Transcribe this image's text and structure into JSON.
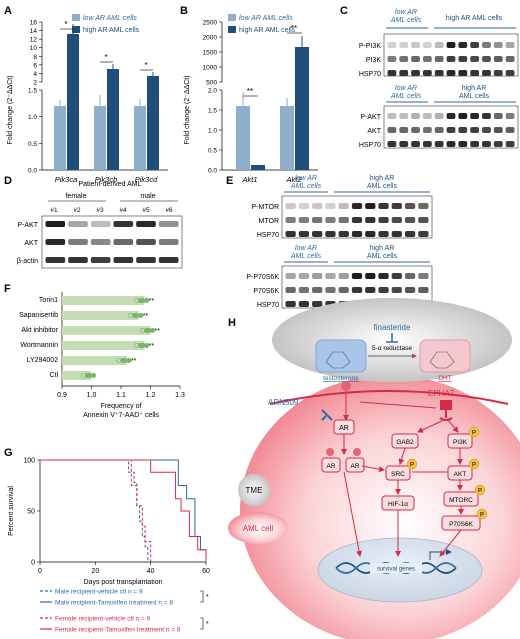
{
  "panels": {
    "A": "A",
    "B": "B",
    "C": "C",
    "D": "D",
    "E": "E",
    "F": "F",
    "G": "G",
    "H": "H"
  },
  "colors": {
    "low": "#8eaecb",
    "high": "#1f4e79",
    "blue": "#2d6aa3",
    "red": "#d62b45",
    "fbar": "#c6dcb5",
    "fdot": "#7cb36a"
  },
  "panelA": {
    "legend": {
      "low": "low AR AML cells",
      "high": "high AR AML cells"
    },
    "ylabel": "Fold change (2⁻ΔΔCt)",
    "categories": [
      "Pik3ca",
      "Pik3cb",
      "Pik3cd"
    ],
    "sig": [
      "*",
      "*",
      "*"
    ],
    "upper_ticks": [
      "16",
      "14",
      "12",
      "10",
      "8",
      "6",
      "4",
      "2"
    ],
    "lower_ticks": [
      "1.5",
      "1.0",
      "0.5",
      "0.0"
    ]
  },
  "panelB": {
    "legend": {
      "low": "low AR AML cells",
      "high": "high AR AML cells"
    },
    "ylabel": "Fold change (2⁻ΔΔCt)",
    "categories": [
      "Akt1",
      "Akt2"
    ],
    "sig": [
      "**",
      "**"
    ],
    "upper_ticks": [
      "2500",
      "2000",
      "1500",
      "1000",
      "500"
    ],
    "lower_ticks": [
      "2.0",
      "1.5",
      "1.0",
      "0.5",
      "0.0"
    ]
  },
  "panelC": {
    "group_low": "low AR\nAML cells",
    "group_high": "high AR AML cells",
    "blot1": [
      "P-PI3K",
      "PI3K",
      "HSP70"
    ],
    "group_low2": "low AR\nAML cells",
    "group_high2": "high AR\nAML cells",
    "blot2": [
      "P-AKT",
      "AKT",
      "HSP70"
    ]
  },
  "panelD": {
    "title": "Patient-derived AML",
    "female": "female",
    "male": "male",
    "lanes": [
      "#1",
      "#2",
      "#3",
      "#4",
      "#5",
      "#6"
    ],
    "rows": [
      "P-AKT",
      "AKT",
      "β-actin"
    ]
  },
  "panelE": {
    "group_low": "low AR\nAML cells",
    "group_high": "high AR\nAML cells",
    "blot1": [
      "P-MTOR",
      "MTOR",
      "HSP70"
    ],
    "group_low2": "low AR\nAML cells",
    "group_high2": "high AR\nAML cells",
    "blot2": [
      "P-P70S6K",
      "P70S6K",
      "HSP70"
    ]
  },
  "chart_data": [
    {
      "panel": "A",
      "type": "bar",
      "categories": [
        "Pik3ca",
        "Pik3cb",
        "Pik3cd"
      ],
      "series": [
        {
          "name": "low AR AML cells",
          "values": [
            1.0,
            1.0,
            1.0
          ],
          "err": [
            0.1,
            0.2,
            0.12
          ]
        },
        {
          "name": "high AR AML cells",
          "values": [
            12.5,
            4.2,
            2.8
          ],
          "err": [
            2.5,
            1.0,
            0.3
          ]
        }
      ],
      "ylabel": "Fold change (2⁻ΔΔCt)"
    },
    {
      "panel": "B",
      "type": "bar",
      "categories": [
        "Akt1",
        "Akt2"
      ],
      "series": [
        {
          "name": "low AR AML cells",
          "values": [
            1.0,
            1.0
          ],
          "err": [
            0.3,
            0.2
          ]
        },
        {
          "name": "high AR AML cells",
          "values": [
            0.1,
            1900
          ],
          "err": [
            0.03,
            300
          ]
        }
      ],
      "ylabel": "Fold change (2⁻ΔΔCt)"
    },
    {
      "panel": "F",
      "type": "bar",
      "orientation": "horizontal",
      "categories": [
        "Torin1",
        "Sapanisertib",
        "Akt inhibitor",
        "Wortmannin",
        "LY294002",
        "Ctl"
      ],
      "values": [
        1.18,
        1.16,
        1.2,
        1.18,
        1.12,
        1.0
      ],
      "sig": [
        "**",
        "**",
        "**",
        "**",
        "**",
        ""
      ],
      "xlim": [
        0.9,
        1.3
      ],
      "xticks": [
        "0.9",
        "1.0",
        "1.1",
        "1.2",
        "1.3"
      ],
      "xlabel": "Frequency of\nAnnexin V⁺7-AAD⁺ cells"
    },
    {
      "panel": "G",
      "type": "line",
      "ylabel": "Percent survival",
      "xlabel": "Days post transplantation",
      "xticks": [
        "0",
        "20",
        "40",
        "60"
      ],
      "yticks": [
        "0",
        "50",
        "100"
      ],
      "series": [
        {
          "name": "Male recipient-vehicle ctl n = 9",
          "color": "#2d6aa3",
          "dash": true,
          "points": [
            [
              0,
              100
            ],
            [
              32,
              100
            ],
            [
              32,
              88
            ],
            [
              34,
              78
            ],
            [
              35,
              55
            ],
            [
              36,
              40
            ],
            [
              37,
              25
            ],
            [
              38,
              15
            ],
            [
              39,
              0
            ]
          ]
        },
        {
          "name": "Male recipient-Tamoxifen treatment n = 8",
          "color": "#2d6aa3",
          "dash": false,
          "points": [
            [
              0,
              100
            ],
            [
              50,
              100
            ],
            [
              50,
              75
            ],
            [
              53,
              62
            ],
            [
              56,
              25
            ],
            [
              58,
              12
            ],
            [
              60,
              0
            ]
          ]
        },
        {
          "name": "Female recipient-vehicle ctl n = 9",
          "color": "#d62b45",
          "dash": true,
          "points": [
            [
              0,
              100
            ],
            [
              33,
              100
            ],
            [
              33,
              75
            ],
            [
              35,
              55
            ],
            [
              37,
              35
            ],
            [
              38,
              20
            ],
            [
              40,
              0
            ]
          ]
        },
        {
          "name": "Female recipient-Tamoxifen treatment n = 8",
          "color": "#d62b45",
          "dash": false,
          "points": [
            [
              0,
              100
            ],
            [
              40,
              100
            ],
            [
              40,
              88
            ],
            [
              46,
              88
            ],
            [
              49,
              62
            ],
            [
              51,
              50
            ],
            [
              54,
              25
            ],
            [
              57,
              12
            ],
            [
              60,
              0
            ]
          ]
        }
      ],
      "sig": [
        "*",
        "*"
      ]
    }
  ],
  "panelH": {
    "finasteride": "finasteride",
    "reductase": "5-α reductase",
    "testosterone": "testosterone",
    "dht": "DHT",
    "arn": "ARN509",
    "epha": "EPHA7",
    "tme": "TME",
    "aml": "AML cell",
    "nodes": {
      "ar": "AR",
      "gab2": "GAB2",
      "pi3k": "PI3K",
      "src": "SRC",
      "akt": "AKT",
      "mtorc": "MTORC",
      "hif": "HIF-1α",
      "p70": "P70S6K",
      "p": "P"
    },
    "genes": "survival genes"
  }
}
